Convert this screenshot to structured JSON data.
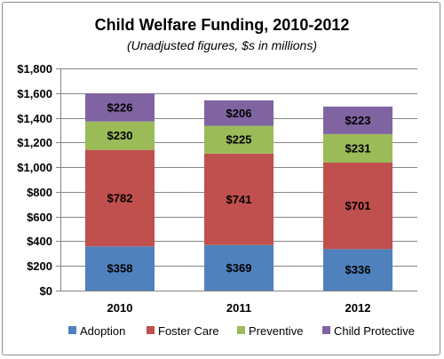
{
  "chart_data": {
    "type": "bar",
    "stacked": true,
    "title": "Child Welfare Funding, 2010-2012",
    "subtitle": "(Unadjusted figures, $s in millions)",
    "categories": [
      "2010",
      "2011",
      "2012"
    ],
    "series": [
      {
        "name": "Adoption",
        "color": "#4f81bd",
        "values": [
          358,
          369,
          336
        ],
        "labels": [
          "$358",
          "$369",
          "$336"
        ]
      },
      {
        "name": "Foster Care",
        "color": "#c0504d",
        "values": [
          782,
          741,
          701
        ],
        "labels": [
          "$782",
          "$741",
          "$701"
        ]
      },
      {
        "name": "Preventive",
        "color": "#9bbb59",
        "values": [
          230,
          225,
          231
        ],
        "labels": [
          "$230",
          "$225",
          "$231"
        ]
      },
      {
        "name": "Child Protective",
        "color": "#8064a2",
        "values": [
          226,
          206,
          223
        ],
        "labels": [
          "$226",
          "$206",
          "$223"
        ]
      }
    ],
    "ylim": [
      0,
      1800
    ],
    "yticks": [
      0,
      200,
      400,
      600,
      800,
      1000,
      1200,
      1400,
      1600,
      1800
    ],
    "ytick_labels": [
      "$0",
      "$200",
      "$400",
      "$600",
      "$800",
      "$1,000",
      "$1,200",
      "$1,400",
      "$1,600",
      "$1,800"
    ],
    "grid": true,
    "gridline_color": "#868686",
    "legend_position": "bottom"
  }
}
